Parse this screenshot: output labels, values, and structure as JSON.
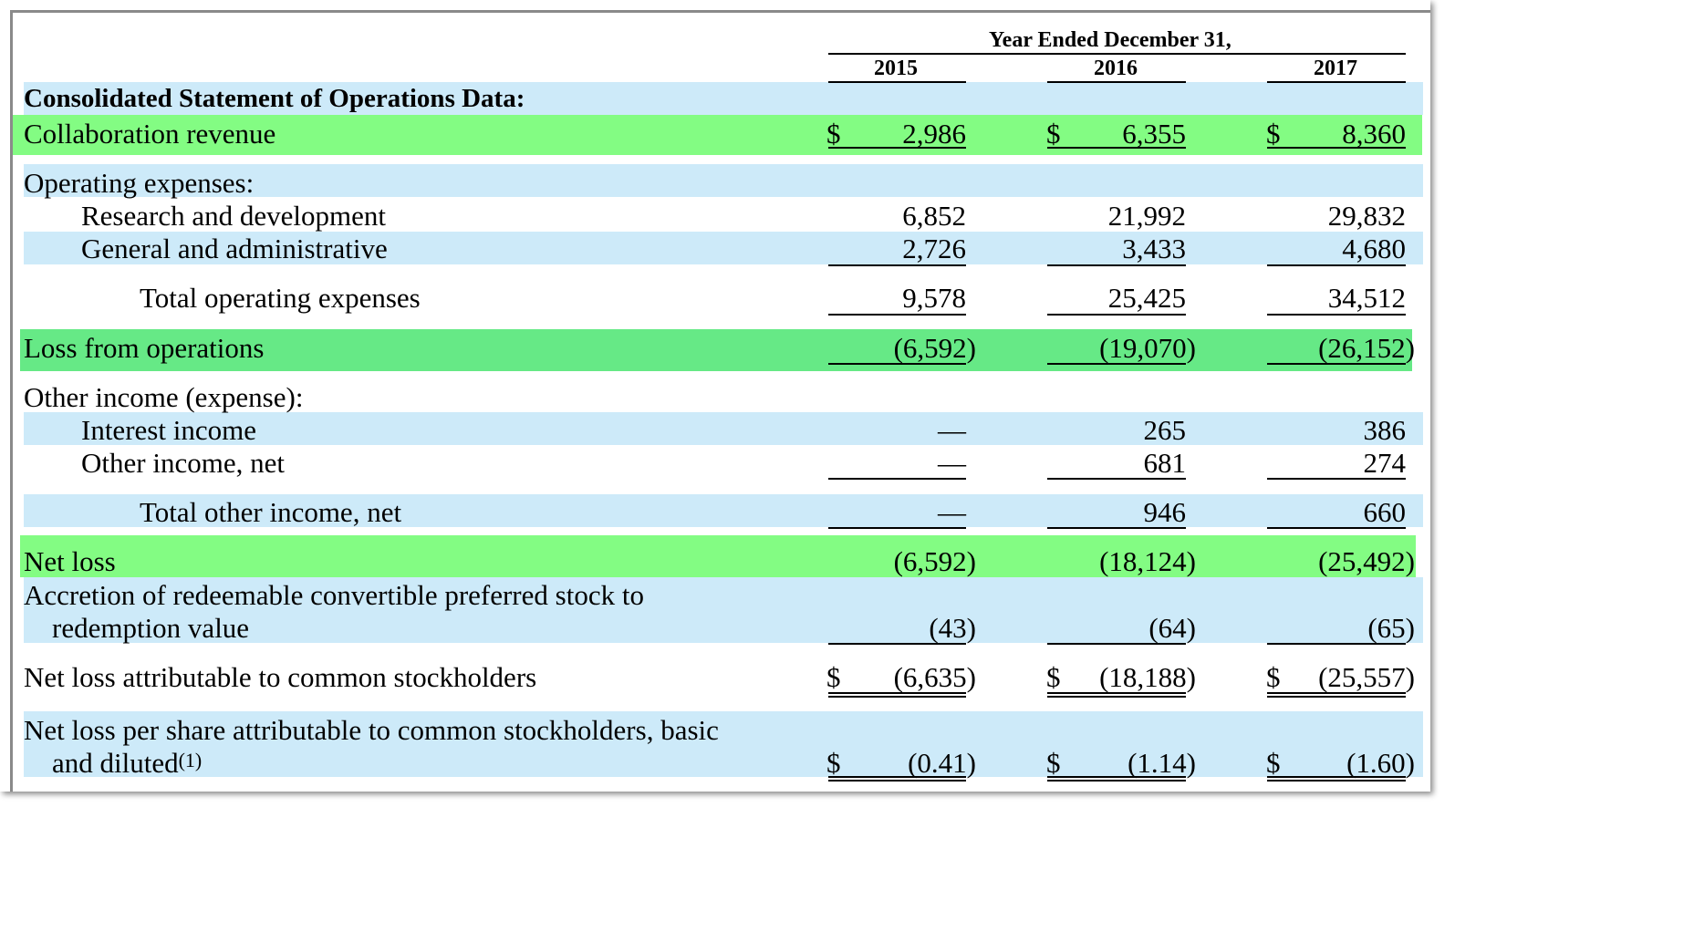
{
  "header": {
    "period_title": "Year Ended December 31,",
    "years": [
      "2015",
      "2016",
      "2017"
    ]
  },
  "section_title": "Consolidated Statement of Operations Data:",
  "rows": {
    "collab": {
      "label": "Collaboration revenue",
      "values": [
        "2,986",
        "6,355",
        "8,360"
      ],
      "dollar": "$"
    },
    "opex_heading": {
      "label": "Operating expenses:"
    },
    "rnd": {
      "label": "Research and development",
      "values": [
        "6,852",
        "21,992",
        "29,832"
      ]
    },
    "gna": {
      "label": "General and administrative",
      "values": [
        "2,726",
        "3,433",
        "4,680"
      ]
    },
    "total_opex": {
      "label": "Total operating expenses",
      "values": [
        "9,578",
        "25,425",
        "34,512"
      ]
    },
    "loss_ops": {
      "label": "Loss from operations",
      "values": [
        "(6,592)",
        "(19,070)",
        "(26,152)"
      ]
    },
    "other_heading": {
      "label": "Other income (expense):"
    },
    "interest": {
      "label": "Interest income",
      "values": [
        "—",
        "265",
        "386"
      ]
    },
    "other_net": {
      "label": "Other income, net",
      "values": [
        "—",
        "681",
        "274"
      ]
    },
    "total_other": {
      "label": "Total other income, net",
      "values": [
        "—",
        "946",
        "660"
      ]
    },
    "net_loss": {
      "label": "Net loss",
      "values": [
        "(6,592)",
        "(18,124)",
        "(25,492)"
      ]
    },
    "accretion": {
      "label_line1": "Accretion of redeemable convertible preferred stock to",
      "label_line2": "redemption value",
      "values": [
        "(43)",
        "(64)",
        "(65)"
      ]
    },
    "nl_common": {
      "label": "Net loss attributable to common stockholders",
      "values": [
        "(6,635)",
        "(18,188)",
        "(25,557)"
      ],
      "dollar": "$"
    },
    "eps": {
      "label_line1": "Net loss per share attributable to common stockholders, basic",
      "label_line2": "and diluted",
      "footnote": "(1)",
      "values": [
        "(0.41)",
        "(1.14)",
        "(1.60)"
      ],
      "dollar": "$"
    }
  },
  "colors": {
    "blue_band": "#cdeaf9",
    "green_highlight": "#83fc83",
    "green_highlight_alt": "#66e986"
  }
}
